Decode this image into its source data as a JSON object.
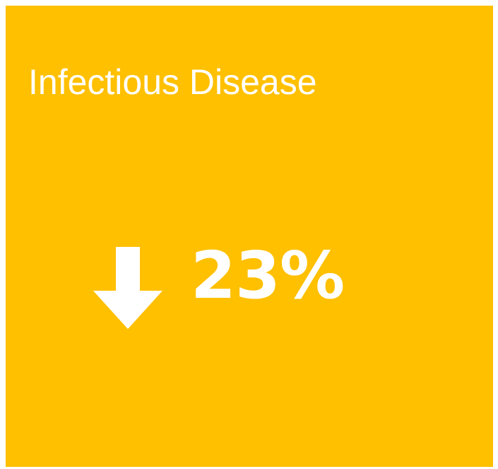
{
  "tile": {
    "title": "Infectious Disease",
    "value": "23%",
    "trend_direction": "down",
    "trend_icon": "arrow-down-icon",
    "background_color": "#FFC000",
    "text_color": "#FFFFFF"
  }
}
